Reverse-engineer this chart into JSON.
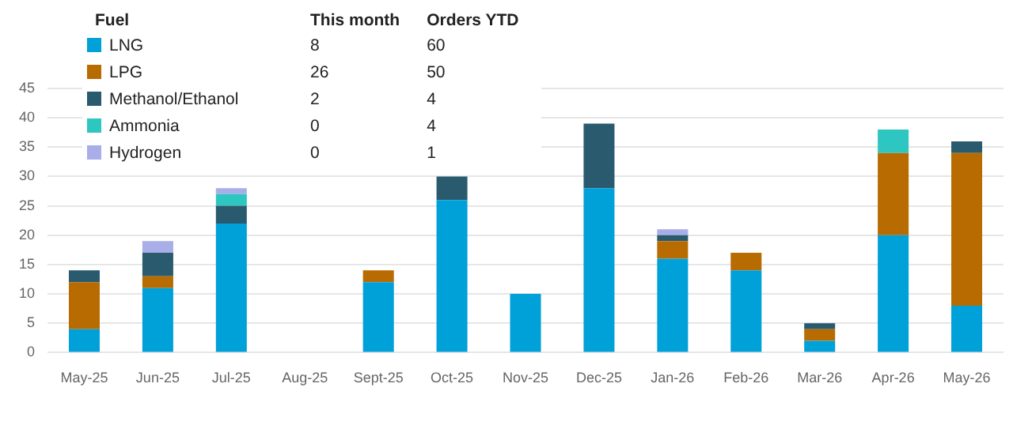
{
  "chart_data": {
    "type": "bar",
    "stacked": true,
    "legend": "top left",
    "legend_title": "Fuel",
    "grid": "y",
    "categories": [
      "May-25",
      "Jun-25",
      "Jul-25",
      "Aug-25",
      "Sept-25",
      "Oct-25",
      "Nov-25",
      "Dec-25",
      "Jan-26",
      "Feb-26",
      "Mar-26",
      "Apr-26",
      "May-26"
    ],
    "series": [
      {
        "name": "LNG",
        "color": "#00a0d8",
        "values": [
          4,
          11,
          22,
          0,
          12,
          26,
          10,
          28,
          16,
          14,
          2,
          20,
          8
        ]
      },
      {
        "name": "LPG",
        "color": "#b86b00",
        "values": [
          8,
          2,
          0,
          0,
          2,
          0,
          0,
          0,
          3,
          3,
          2,
          14,
          26
        ]
      },
      {
        "name": "Methanol/Ethanol",
        "color": "#2a5a6e",
        "values": [
          2,
          4,
          3,
          0,
          0,
          4,
          0,
          11,
          1,
          0,
          1,
          0,
          2
        ]
      },
      {
        "name": "Ammonia",
        "color": "#2ec6c0",
        "values": [
          0,
          0,
          2,
          0,
          0,
          0,
          0,
          0,
          0,
          0,
          0,
          4,
          0
        ]
      },
      {
        "name": "Hydrogen",
        "color": "#a9aee8",
        "values": [
          0,
          2,
          1,
          0,
          0,
          0,
          0,
          0,
          1,
          0,
          0,
          0,
          0
        ]
      }
    ],
    "ylim": [
      0,
      45
    ],
    "yticks": [
      0,
      5,
      10,
      15,
      20,
      25,
      30,
      35,
      40,
      45
    ],
    "annotations": [
      "This month",
      "Orders YTD",
      "8",
      "60",
      "26",
      "50",
      "2",
      "4",
      "0",
      "4",
      "0",
      "1"
    ]
  }
}
